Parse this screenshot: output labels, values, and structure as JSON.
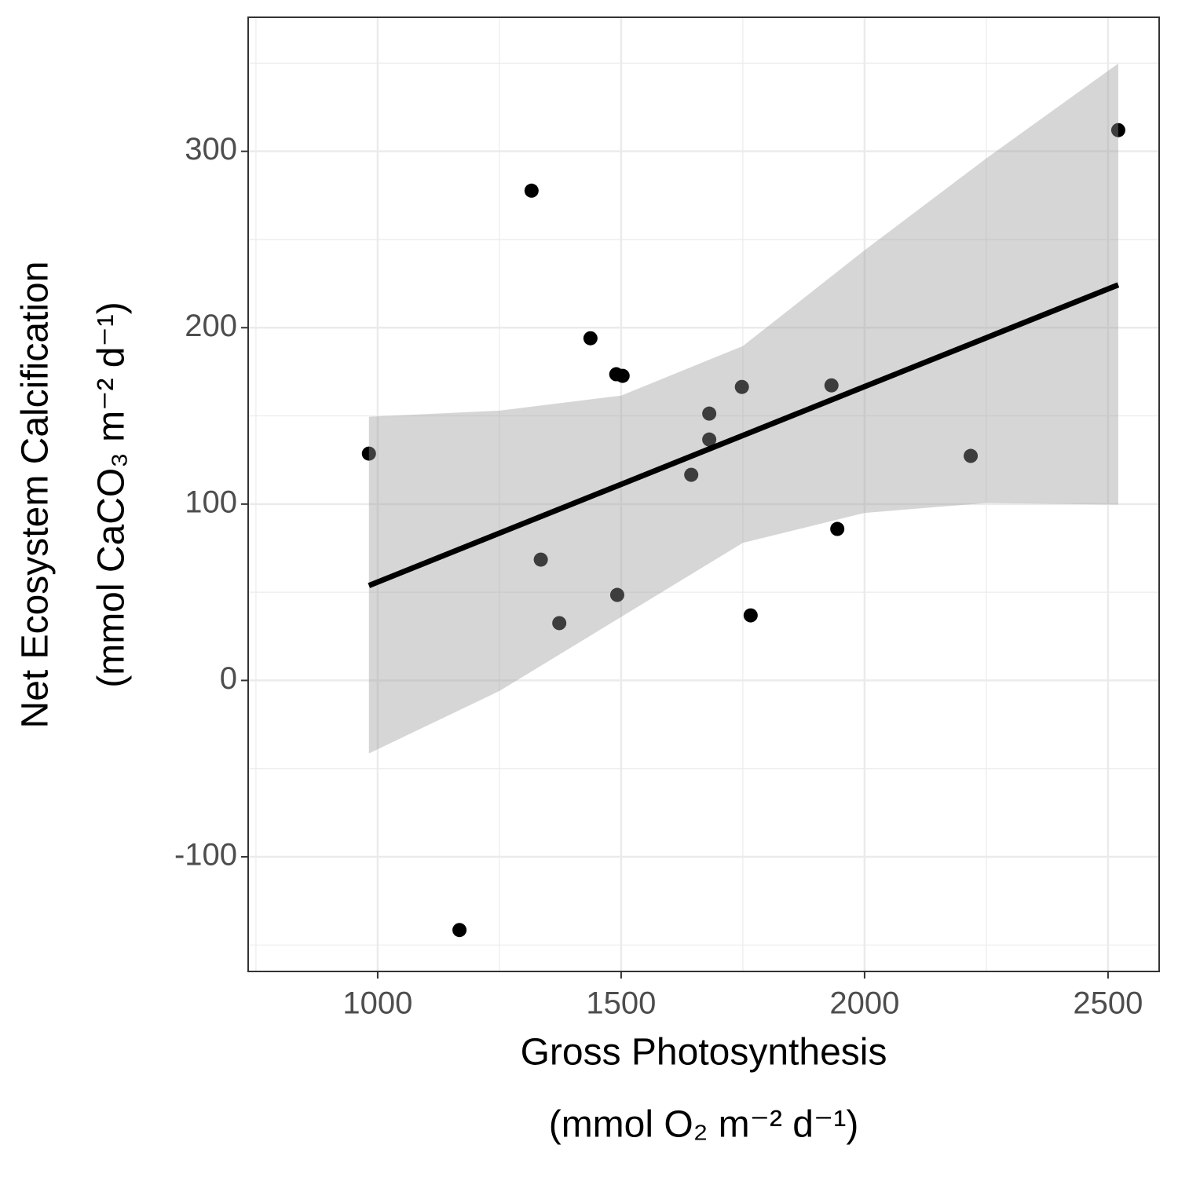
{
  "chart_data": {
    "type": "scatter",
    "x_label": [
      "Gross Photosynthesis",
      "(mmol O₂ m⁻² d⁻¹)"
    ],
    "y_label": [
      "Net Ecosystem Calcification",
      "(mmol CaCO₃ m⁻² d⁻¹)"
    ],
    "x": [
      982,
      1168,
      1316,
      1335,
      1373,
      1437,
      1490,
      1503,
      1492,
      1644,
      1681,
      1681,
      1748,
      1766,
      1932,
      1944,
      2218,
      2521
    ],
    "values": [
      128.6,
      -141.5,
      277.7,
      68.5,
      32.5,
      194,
      173.6,
      172.7,
      48.5,
      116.6,
      151.3,
      136.6,
      166.4,
      36.9,
      167.3,
      85.9,
      127.3,
      312
    ],
    "color": "#000000",
    "fit": {
      "x": [
        982,
        1250,
        1500,
        1750,
        2000,
        2250,
        2521
      ],
      "y": [
        53.8,
        83.5,
        111.2,
        138.9,
        166.6,
        194.3,
        224.3
      ],
      "ymin": [
        -41.4,
        -6,
        36,
        78,
        95,
        100.6,
        99.7
      ],
      "ymax": [
        149.5,
        153,
        161.5,
        189.6,
        243.9,
        296,
        349.8
      ],
      "color": "#000000",
      "band_color": "#999999"
    },
    "xlim": [
      734,
      2605
    ],
    "ylim": [
      -165,
      376
    ],
    "xticks": [
      1000,
      1500,
      2000,
      2500
    ],
    "yticks": [
      -100,
      0,
      100,
      200,
      300
    ],
    "x_minor_ticks": [
      750,
      1250,
      1750,
      2250
    ],
    "y_minor_ticks": [
      -150,
      -50,
      50,
      150,
      250,
      350
    ],
    "grid": true
  }
}
